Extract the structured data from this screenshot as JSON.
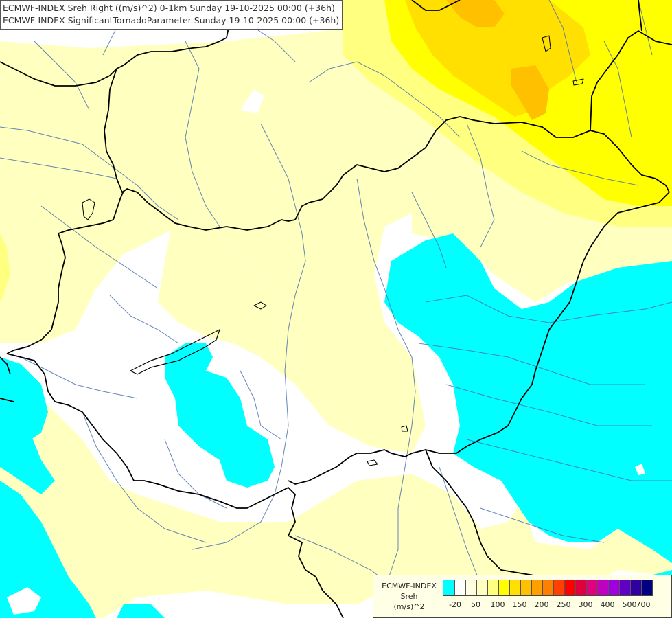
{
  "title": {
    "line1": "ECMWF-INDEX Sreh Right ((m/s)^2) 0-1km Sunday 19-10-2025 00:00 (+36h)",
    "line2": "ECMWF-INDEX SignificantTornadoParameter Sunday 19-10-2025 00:00 (+36h)"
  },
  "legend": {
    "line1": "ECMWF-INDEX",
    "line2": "Sreh",
    "line3": "(m/s)^2",
    "colors": [
      "#00ffff",
      "#ffffff",
      "#ffffe0",
      "#ffffc0",
      "#ffff80",
      "#ffff00",
      "#ffe000",
      "#ffc000",
      "#ffa000",
      "#ff8000",
      "#ff4000",
      "#ff0000",
      "#e00040",
      "#e00080",
      "#c000c0",
      "#a000e0",
      "#6000c0",
      "#3000a0",
      "#000080"
    ],
    "labels": [
      "-20",
      "50",
      "100",
      "150",
      "200",
      "250",
      "300",
      "400",
      "500",
      "700"
    ]
  },
  "colors": {
    "cyan": "#00ffff",
    "pale_yellow": "#ffffc0",
    "light_yellow": "#ffff80",
    "yellow": "#ffff00",
    "gold": "#ffe000",
    "orange_yellow": "#ffc000",
    "border": "#000000",
    "river": "#4a6fb0"
  }
}
